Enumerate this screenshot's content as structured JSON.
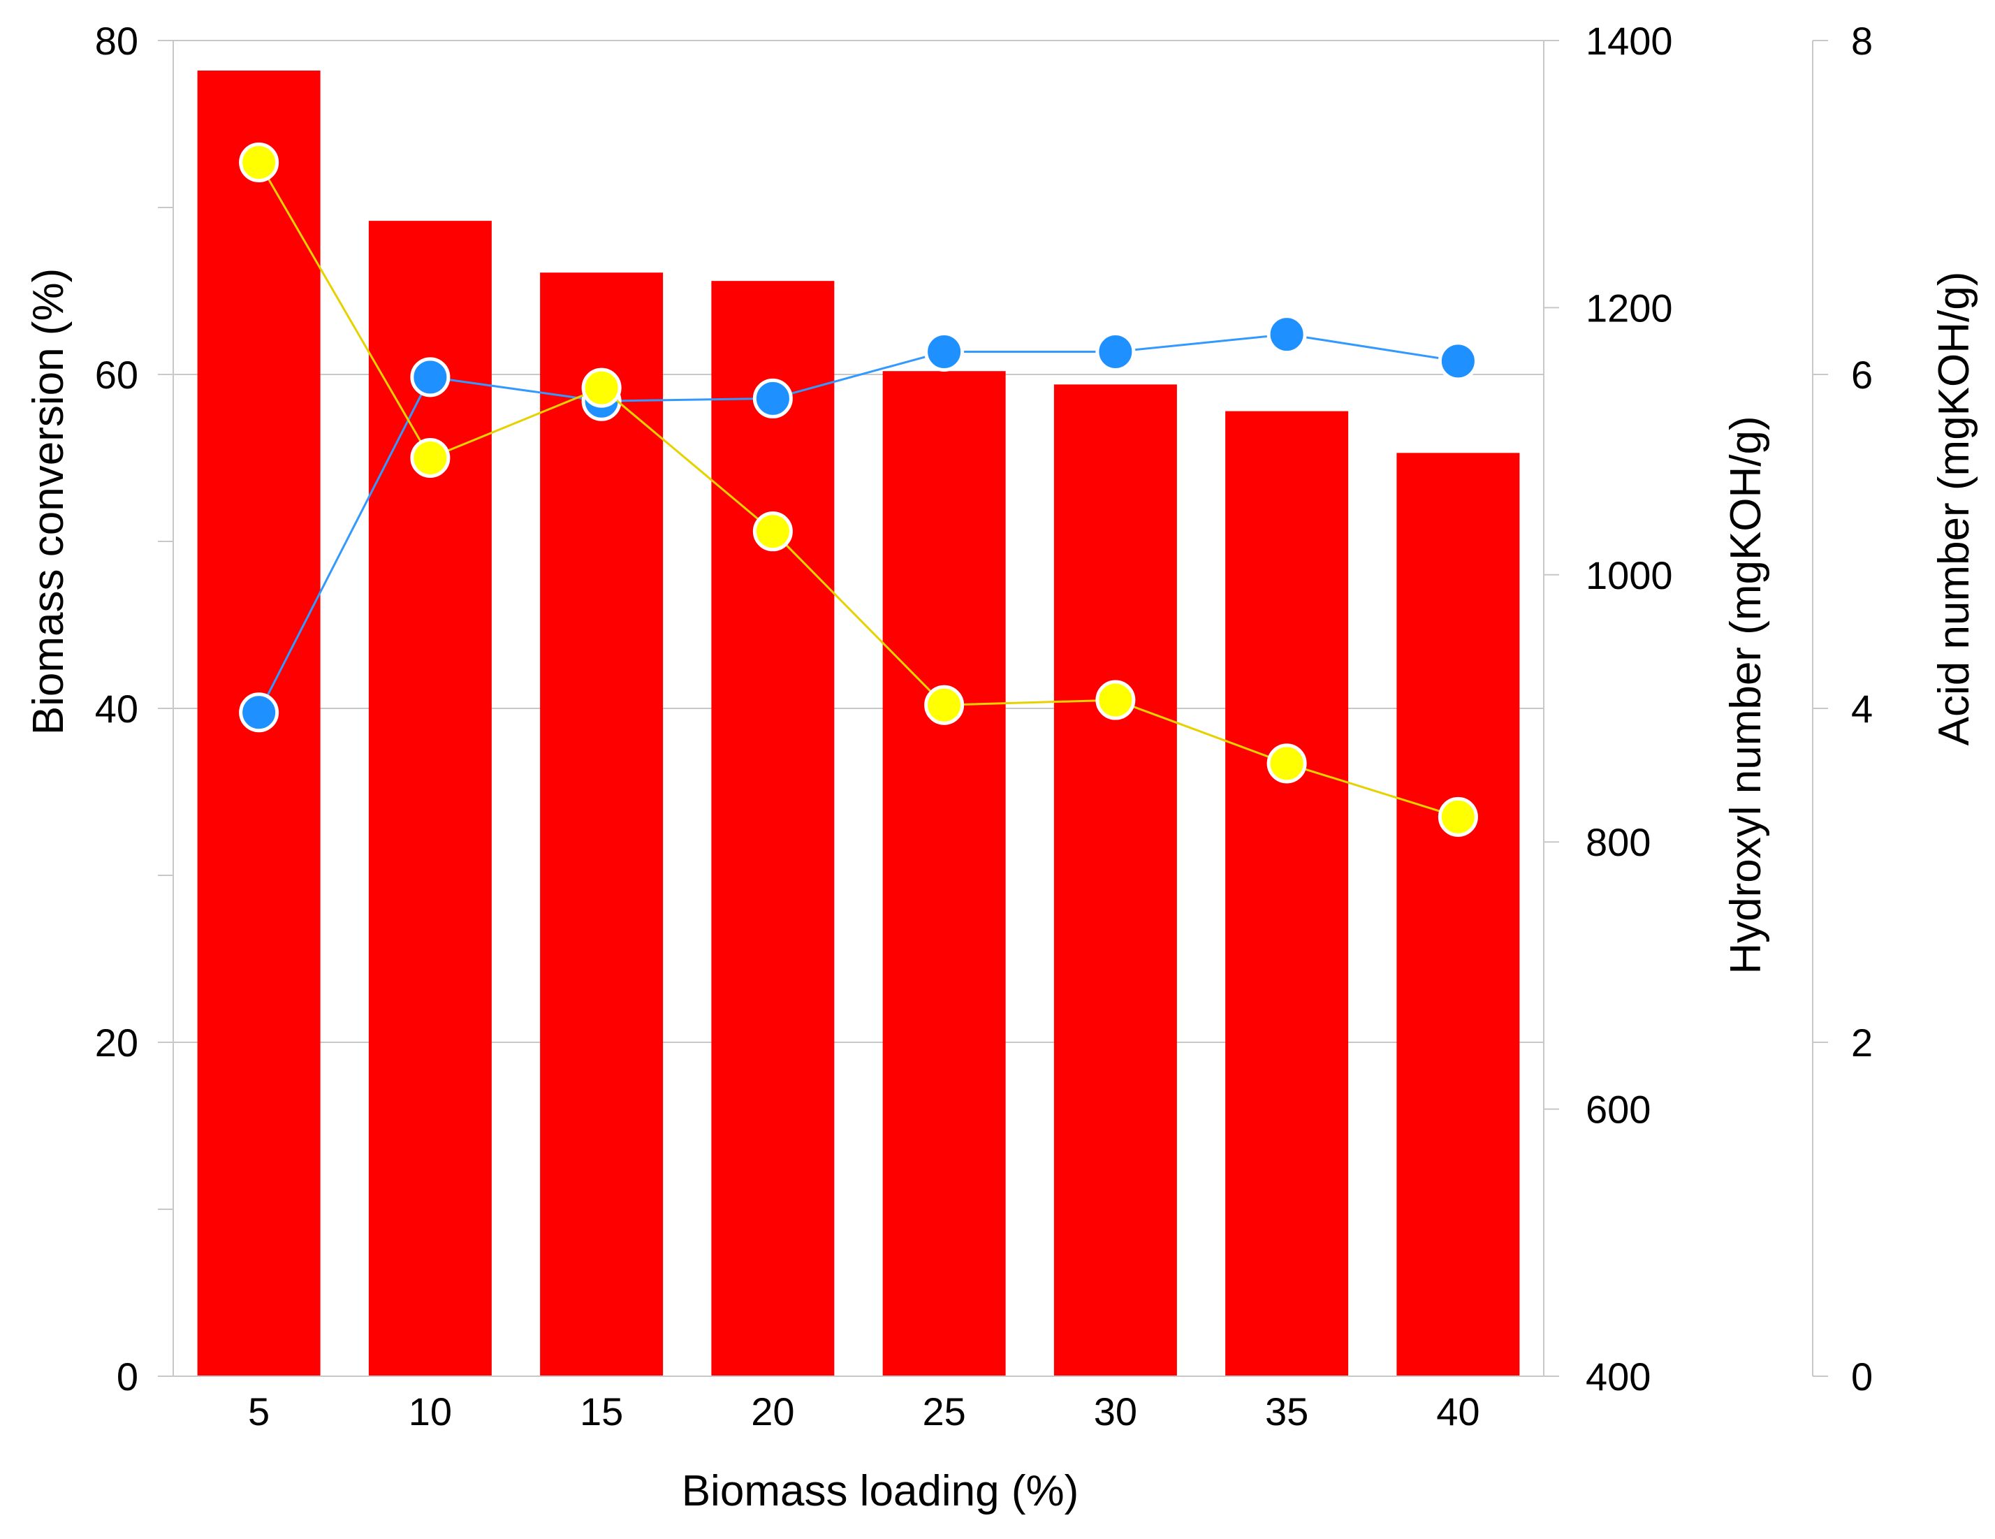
{
  "chart_data": {
    "type": "bar",
    "title": "",
    "xlabel": "Biomass loading (%)",
    "categories": [
      "5",
      "10",
      "15",
      "20",
      "25",
      "30",
      "35",
      "40"
    ],
    "series": [
      {
        "name": "Biomass conversion",
        "kind": "bar",
        "axis": "left",
        "values": [
          78.2,
          69.2,
          66.1,
          65.6,
          60.2,
          59.4,
          57.8,
          55.3
        ]
      },
      {
        "name": "Hydroxyl number",
        "kind": "line",
        "axis": "right",
        "values": [
          897,
          1148,
          1130,
          1132,
          1167,
          1167,
          1180,
          1160
        ]
      },
      {
        "name": "Acid number",
        "kind": "line",
        "axis": "far_right",
        "values": [
          7.27,
          5.5,
          5.92,
          5.06,
          4.02,
          4.05,
          3.67,
          3.35
        ]
      }
    ],
    "axes": {
      "left": {
        "label": "Biomass conversion (%)",
        "ylim": [
          0,
          80
        ],
        "ticks": [
          "0",
          "20",
          "40",
          "60",
          "80"
        ]
      },
      "right": {
        "label": "Hydroxyl number (mgKOH/g)",
        "ylim": [
          400,
          1400
        ],
        "ticks": [
          "400",
          "600",
          "800",
          "1000",
          "1200",
          "1400"
        ]
      },
      "far_right": {
        "label": "Acid number (mgKOH/g)",
        "ylim": [
          0,
          8
        ],
        "ticks": [
          "0",
          "2",
          "4",
          "6",
          "8"
        ]
      }
    },
    "colors": {
      "bars": "#ff0000",
      "hydroxyl_line": "#3399ff",
      "hydroxyl_marker": "#1e90ff",
      "acid_line": "#e6d200",
      "acid_marker": "#ffff00",
      "grid": "#c8c8c8"
    },
    "grid": true
  }
}
